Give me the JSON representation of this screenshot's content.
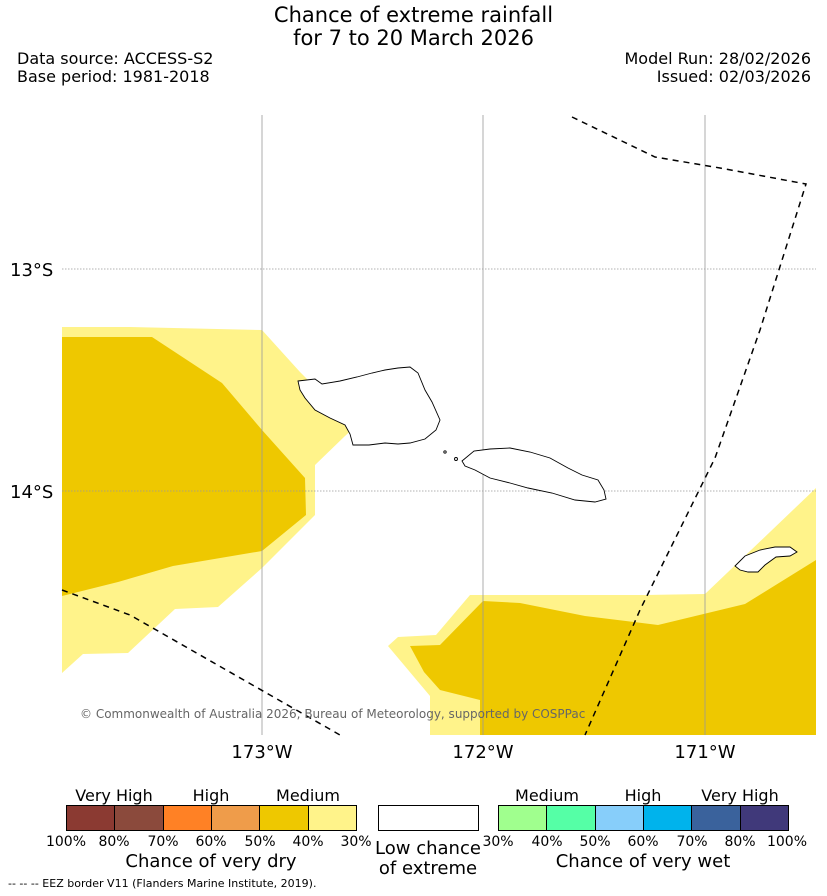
{
  "title_line1": "Chance of extreme rainfall",
  "title_line2": "for 7 to 20 March 2026",
  "data_source": "Data source: ACCESS-S2",
  "base_period": "Base period: 1981-2018",
  "model_run": "Model Run: 28/02/2026",
  "issued": "Issued: 02/03/2026",
  "map": {
    "lat_labels": [
      "13°S",
      "14°S"
    ],
    "lon_labels": [
      "173°W",
      "172°W",
      "171°W"
    ],
    "copyright": "© Commonwealth of Australia 2026, Bureau of Meteorology, supported by COSPPac",
    "fill_colors": {
      "medium_dry": "#eec800",
      "low_medium_dry": "#fff38a"
    }
  },
  "dry_legend": {
    "categories": [
      "Very High",
      "High",
      "Medium"
    ],
    "colors": [
      "#8b3a32",
      "#8b4a3c",
      "#ff8125",
      "#ef9c4a",
      "#eec800",
      "#fff38a"
    ],
    "ticks": [
      "100%",
      "80%",
      "70%",
      "60%",
      "50%",
      "40%",
      "30%"
    ],
    "label": "Chance of very dry"
  },
  "low_legend": {
    "line1": "Low chance",
    "line2": "of extreme",
    "color": "#ffffff"
  },
  "wet_legend": {
    "categories": [
      "Medium",
      "High",
      "Very High"
    ],
    "colors": [
      "#a0ff8e",
      "#55ffa6",
      "#87cefa",
      "#00b3ec",
      "#3a629c",
      "#40397a"
    ],
    "ticks": [
      "30%",
      "40%",
      "50%",
      "60%",
      "70%",
      "80%",
      "100%"
    ],
    "label": "Chance of very wet"
  },
  "footnote": "-- -- -- EEZ border V11 (Flanders Marine Institute, 2019)."
}
